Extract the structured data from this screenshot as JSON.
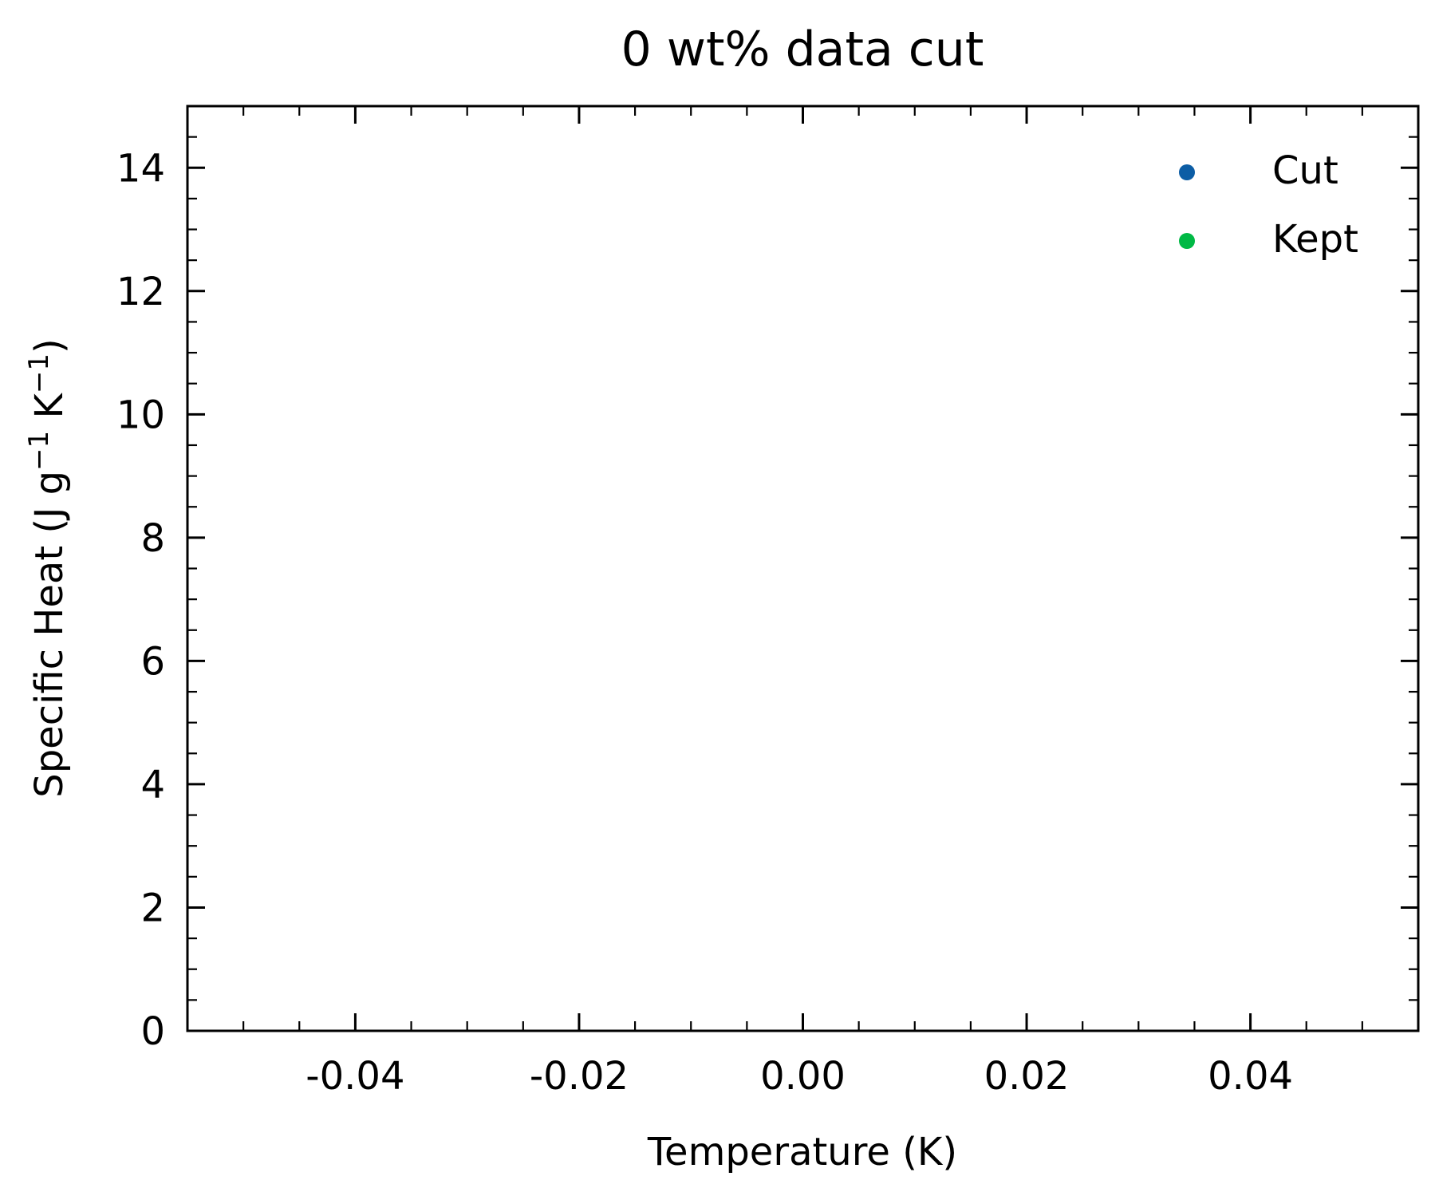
{
  "chart_data": {
    "type": "scatter",
    "title": "0 wt% data cut",
    "xlabel": "Temperature (K)",
    "ylabel": {
      "prefix": "Specific Heat (J g",
      "sup1": "−1",
      "middle": " K",
      "sup2": "−1",
      "suffix": ")"
    },
    "xlim": [
      -0.055,
      0.055
    ],
    "ylim": [
      0,
      15
    ],
    "x_ticks": [
      -0.04,
      -0.02,
      0.0,
      0.02,
      0.04
    ],
    "x_tick_labels": [
      "-0.04",
      "-0.02",
      "0.00",
      "0.02",
      "0.04"
    ],
    "x_minor_step": 0.005,
    "y_ticks": [
      0,
      2,
      4,
      6,
      8,
      10,
      12,
      14
    ],
    "y_tick_labels": [
      "0",
      "2",
      "4",
      "6",
      "8",
      "10",
      "12",
      "14"
    ],
    "y_minor_step": 0.5,
    "grid": false,
    "legend_position": "top-right",
    "series": [
      {
        "name": "Cut",
        "color": "#0c5da5",
        "x": [],
        "y": []
      },
      {
        "name": "Kept",
        "color": "#00b945",
        "x": [],
        "y": []
      }
    ]
  }
}
